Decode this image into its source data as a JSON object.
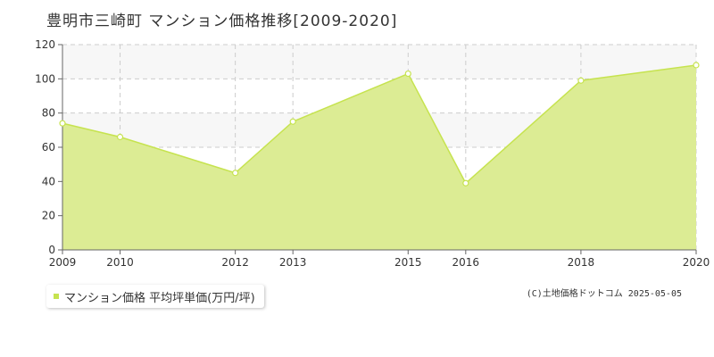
{
  "title": "豊明市三崎町 マンション価格推移[2009-2020]",
  "legend": {
    "label": "マンション価格 平均坪単価(万円/坪)"
  },
  "copyright": "(C)土地価格ドットコム 2025-05-05",
  "colors": {
    "area_fill": "#dcec94",
    "line": "#c6e34f",
    "grid": "#cccccc",
    "axis": "#666666",
    "band": "#f7f7f7"
  },
  "chart_data": {
    "type": "area",
    "x": [
      2009,
      2010,
      2012,
      2013,
      2015,
      2016,
      2018,
      2020
    ],
    "series": [
      {
        "name": "マンション価格 平均坪単価(万円/坪)",
        "values": [
          74,
          66,
          45,
          75,
          103,
          39,
          99,
          108
        ]
      }
    ],
    "x_tick_labels": [
      "2009",
      "2010",
      "2012",
      "2013",
      "2015",
      "2016",
      "2018",
      "2020"
    ],
    "y_ticks": [
      0,
      20,
      40,
      60,
      80,
      100,
      120
    ],
    "ylim": [
      0,
      120
    ],
    "grid": true,
    "legend_position": "bottom-left"
  }
}
